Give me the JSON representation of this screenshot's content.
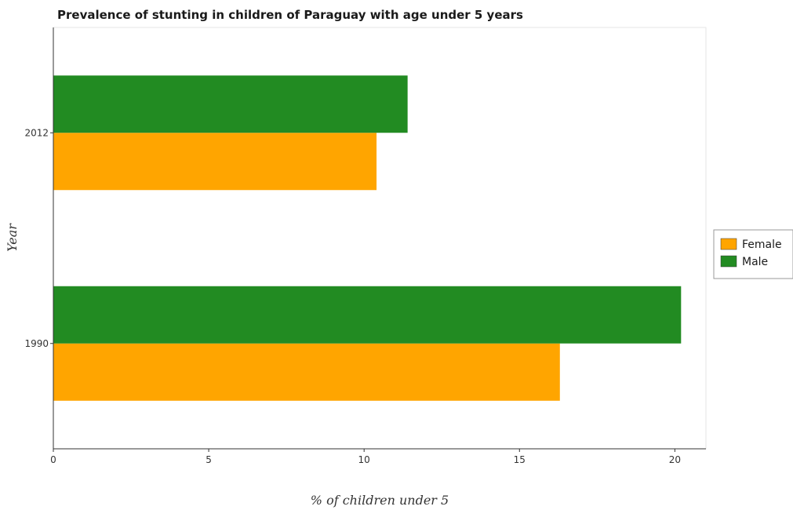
{
  "chart_data": {
    "type": "bar",
    "orientation": "horizontal",
    "title": "Prevalence of stunting in children of Paraguay with age under 5 years",
    "xlabel": "% of children under 5",
    "ylabel": "Year",
    "categories": [
      "1990",
      "2012"
    ],
    "series": [
      {
        "name": "Female",
        "color": "#ffa500",
        "values": [
          16.3,
          10.4
        ]
      },
      {
        "name": "Male",
        "color": "#228b22",
        "values": [
          20.2,
          11.4
        ]
      }
    ],
    "xlim": [
      0,
      21
    ],
    "xticks": [
      "0",
      "5",
      "10",
      "15",
      "20"
    ],
    "grid": false,
    "legend_position": "right"
  }
}
